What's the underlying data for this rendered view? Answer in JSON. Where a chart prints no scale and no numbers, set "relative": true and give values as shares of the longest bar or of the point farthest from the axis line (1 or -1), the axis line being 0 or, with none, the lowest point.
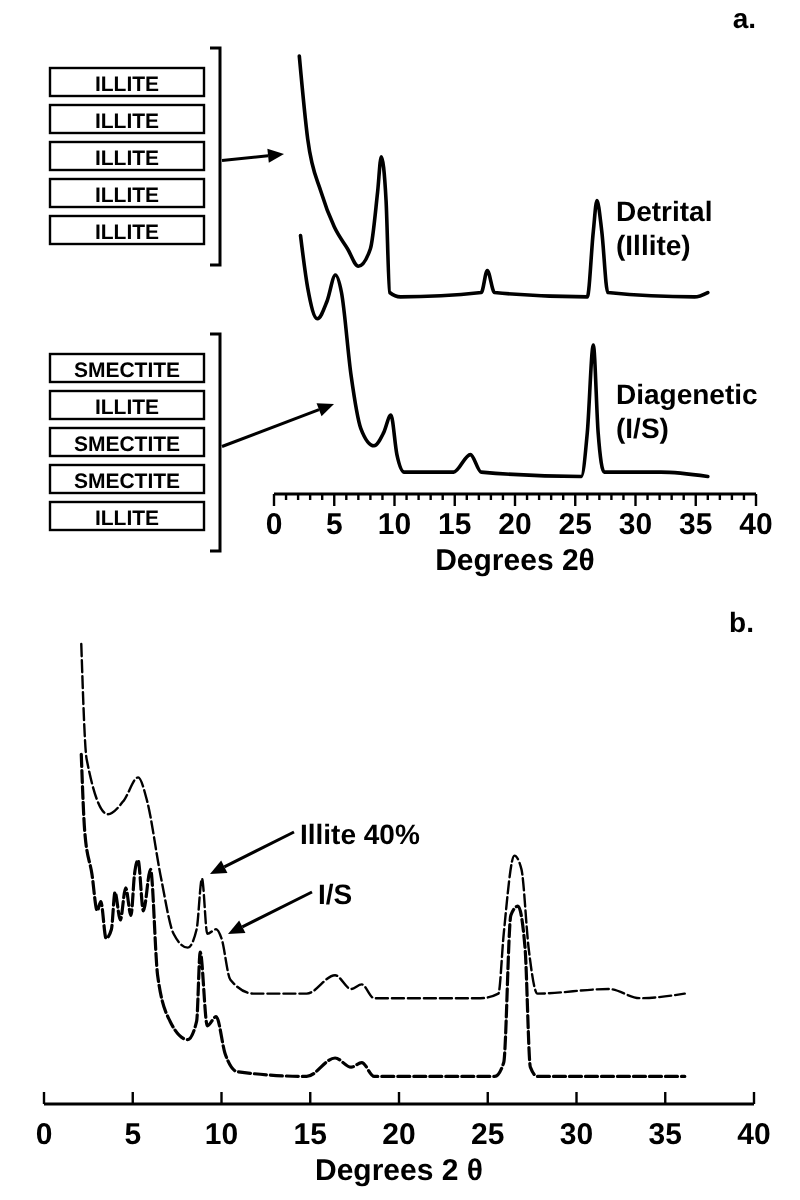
{
  "chart_data": [
    {
      "type": "line",
      "relative": true,
      "xlabel": "Degrees 2θ",
      "tick_labels": "x",
      "line_style": "solid",
      "xlim": [
        0,
        40
      ],
      "xticks": [
        0,
        {
          "value": 1,
          "label": null
        },
        {
          "value": 2,
          "label": null
        },
        {
          "value": 3,
          "label": null
        },
        {
          "value": 4,
          "label": null
        },
        5,
        {
          "value": 6,
          "label": null
        },
        {
          "value": 7,
          "label": null
        },
        {
          "value": 8,
          "label": null
        },
        {
          "value": 9,
          "label": null
        },
        10,
        {
          "value": 11,
          "label": null
        },
        {
          "value": 12,
          "label": null
        },
        {
          "value": 13,
          "label": null
        },
        {
          "value": 14,
          "label": null
        },
        15,
        {
          "value": 16,
          "label": null
        },
        {
          "value": 17,
          "label": null
        },
        {
          "value": 18,
          "label": null
        },
        {
          "value": 19,
          "label": null
        },
        20,
        {
          "value": 21,
          "label": null
        },
        {
          "value": 22,
          "label": null
        },
        {
          "value": 23,
          "label": null
        },
        {
          "value": 24,
          "label": null
        },
        25,
        {
          "value": 26,
          "label": null
        },
        {
          "value": 27,
          "label": null
        },
        {
          "value": 28,
          "label": null
        },
        {
          "value": 29,
          "label": null
        },
        30,
        {
          "value": 31,
          "label": null
        },
        {
          "value": 32,
          "label": null
        },
        {
          "value": 33,
          "label": null
        },
        {
          "value": 34,
          "label": null
        },
        35,
        {
          "value": 36,
          "label": null
        },
        {
          "value": 37,
          "label": null
        },
        {
          "value": 38,
          "label": null
        },
        {
          "value": 39,
          "label": null
        },
        40
      ],
      "series": [
        {
          "name": "Detrital (Illite)",
          "color": "#000000",
          "x": [
            2.1,
            2.8,
            3.9,
            5.0,
            6.1,
            7.0,
            8.0,
            8.6,
            8.9,
            9.3,
            9.6,
            10.5,
            17.2,
            17.7,
            18.3,
            26.0,
            26.5,
            26.8,
            27.2,
            27.7,
            34.9,
            36.0
          ],
          "values": [
            1.0,
            0.81,
            0.69,
            0.61,
            0.56,
            0.52,
            0.56,
            0.69,
            0.77,
            0.67,
            0.46,
            0.45,
            0.46,
            0.51,
            0.46,
            0.45,
            0.6,
            0.67,
            0.6,
            0.46,
            0.45,
            0.46
          ]
        },
        {
          "name": "Diagenetic (I/S)",
          "color": "#000000",
          "x": [
            2.2,
            2.8,
            3.6,
            4.4,
            5.1,
            5.6,
            6.4,
            7.2,
            8.3,
            9.1,
            9.7,
            10.2,
            10.8,
            14.9,
            16.3,
            17.2,
            25.5,
            26.0,
            26.5,
            26.9,
            27.4,
            32.1,
            36.0
          ],
          "values": [
            0.59,
            0.47,
            0.4,
            0.44,
            0.5,
            0.46,
            0.27,
            0.15,
            0.11,
            0.14,
            0.18,
            0.09,
            0.05,
            0.05,
            0.09,
            0.05,
            0.04,
            0.14,
            0.34,
            0.14,
            0.05,
            0.05,
            0.04
          ]
        }
      ],
      "annotations": [
        "a.",
        "ILLITE",
        "ILLITE",
        "ILLITE",
        "ILLITE",
        "ILLITE",
        "SMECTITE",
        "ILLITE",
        "SMECTITE",
        "SMECTITE",
        "ILLITE"
      ]
    },
    {
      "type": "line",
      "relative": true,
      "xlabel": "Degrees 2 θ",
      "tick_labels": "x",
      "line_style": "dashed",
      "xlim": [
        0,
        40
      ],
      "xticks": [
        0,
        5,
        10,
        15,
        20,
        25,
        30,
        35,
        40
      ],
      "series": [
        {
          "color": "#000000",
          "x": [
            2.1,
            2.4,
            3.6,
            4.5,
            5.3,
            5.8,
            6.6,
            7.3,
            8.1,
            8.6,
            8.9,
            9.2,
            9.7,
            10.0,
            10.5,
            11.8,
            14.8,
            16.4,
            17.3,
            17.9,
            18.6,
            24.6,
            25.6,
            25.9,
            26.5,
            26.9,
            27.3,
            27.8,
            31.8,
            33.6,
            36.1
          ],
          "values": [
            1.0,
            0.75,
            0.63,
            0.66,
            0.71,
            0.66,
            0.49,
            0.37,
            0.34,
            0.38,
            0.49,
            0.37,
            0.38,
            0.36,
            0.27,
            0.24,
            0.24,
            0.28,
            0.25,
            0.26,
            0.23,
            0.23,
            0.24,
            0.37,
            0.54,
            0.51,
            0.34,
            0.24,
            0.25,
            0.23,
            0.24
          ]
        },
        {
          "color": "#000000",
          "x": [
            2.1,
            2.3,
            2.7,
            3.0,
            3.2,
            3.5,
            3.8,
            4.0,
            4.3,
            4.6,
            4.9,
            5.1,
            5.3,
            5.6,
            6.0,
            6.4,
            7.1,
            8.1,
            8.6,
            8.8,
            9.2,
            9.7,
            10.2,
            10.9,
            14.8,
            16.4,
            17.3,
            17.9,
            18.6,
            25.4,
            25.9,
            26.3,
            26.7,
            27.1,
            27.4,
            27.8,
            36.1
          ],
          "values": [
            0.76,
            0.59,
            0.5,
            0.42,
            0.44,
            0.36,
            0.38,
            0.46,
            0.4,
            0.47,
            0.41,
            0.5,
            0.53,
            0.42,
            0.51,
            0.28,
            0.18,
            0.14,
            0.18,
            0.33,
            0.17,
            0.19,
            0.11,
            0.07,
            0.06,
            0.1,
            0.08,
            0.09,
            0.06,
            0.06,
            0.09,
            0.41,
            0.43,
            0.34,
            0.08,
            0.06,
            0.06
          ]
        }
      ],
      "annotations": [
        "b.",
        "Illite 40%",
        "I/S"
      ]
    }
  ]
}
